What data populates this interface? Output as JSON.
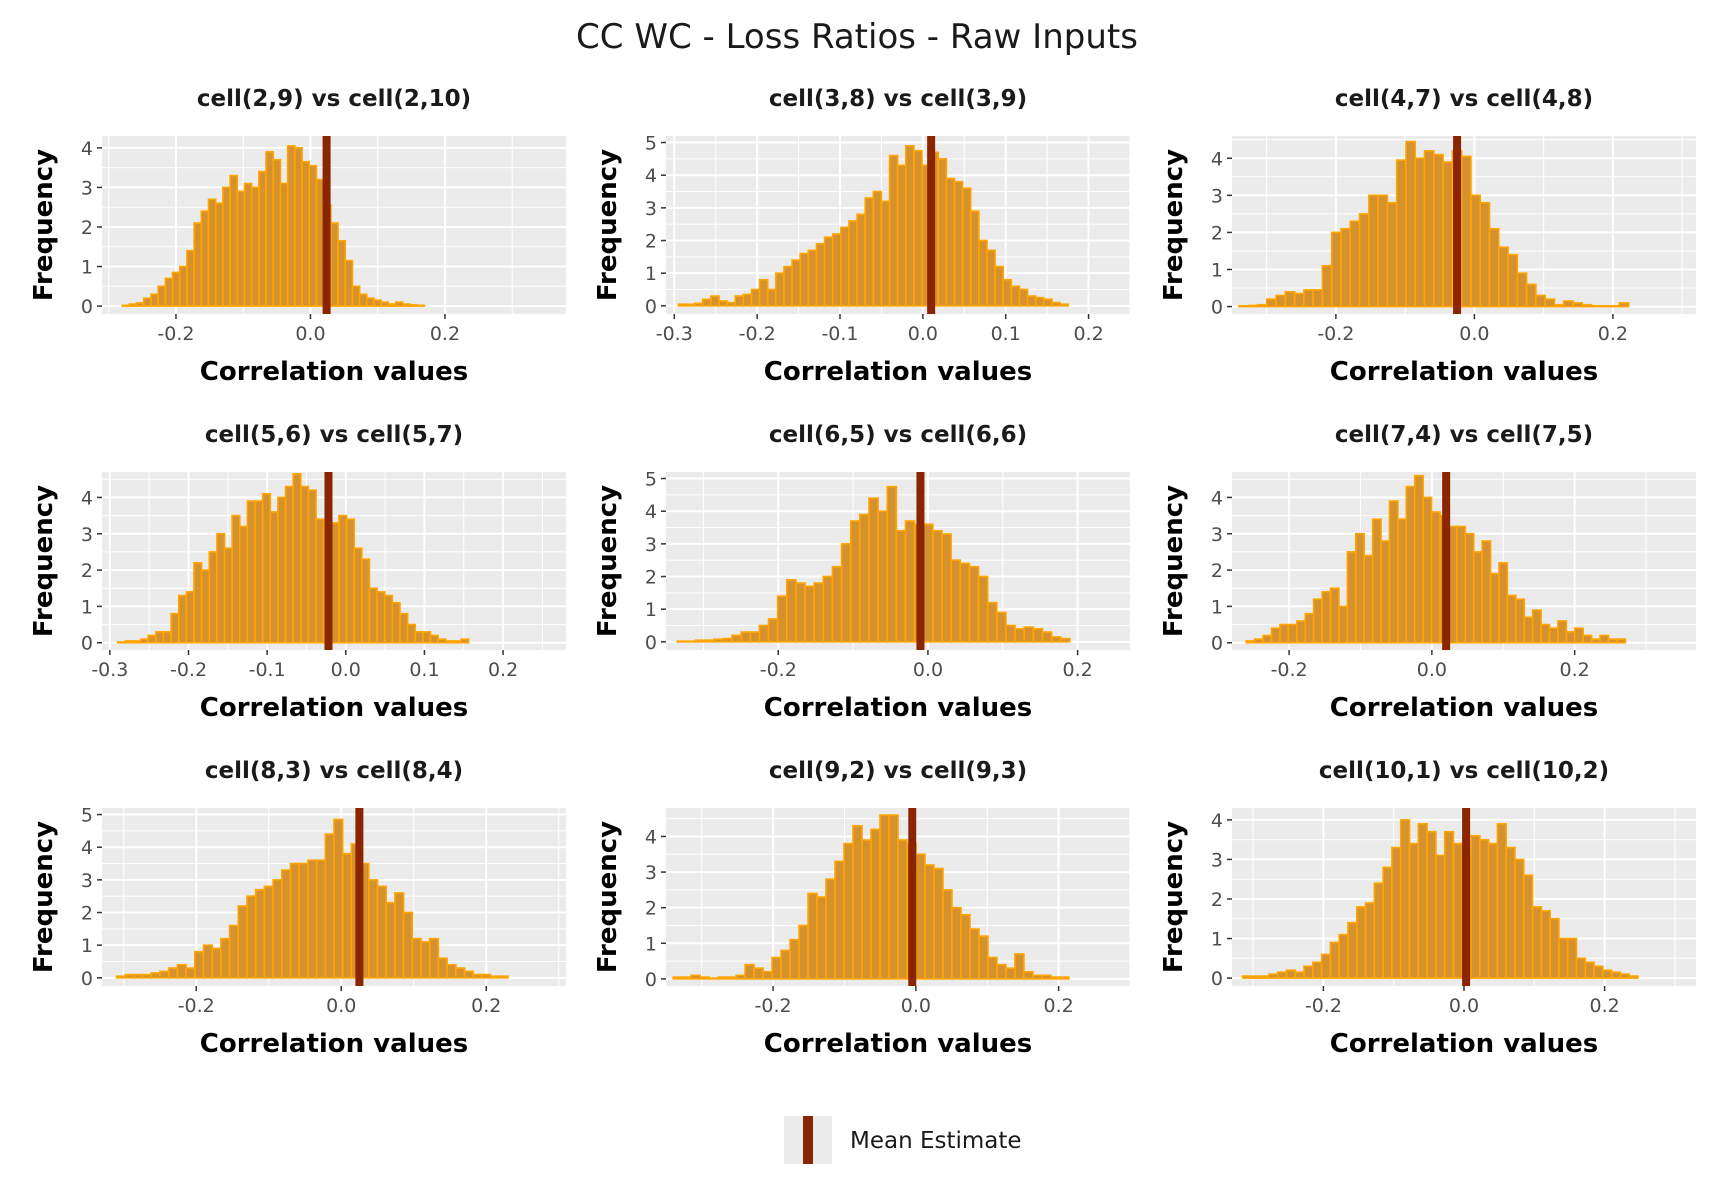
{
  "title": "CC WC - Loss Ratios - Raw Inputs",
  "legend": {
    "label": "Mean Estimate"
  },
  "colors": {
    "panel_bg": "#ebebeb",
    "grid": "#ffffff",
    "bar_fill": "#d4912e",
    "bar_stroke": "#ffa500",
    "mean_line": "#8b2500"
  },
  "chart_data": [
    {
      "type": "bar",
      "title": "cell(2,9) vs cell(2,10)",
      "xlabel": "Correlation values",
      "ylabel": "Frequency",
      "xlim": [
        -0.31,
        0.38
      ],
      "ylim": [
        -0.2,
        4.3
      ],
      "xticks": [
        -0.2,
        0.0,
        0.2
      ],
      "xtick_labels": [
        "-0.2",
        "0.0",
        "0.2"
      ],
      "yticks": [
        0,
        1,
        2,
        3,
        4
      ],
      "ytick_labels": [
        "0",
        "1",
        "2",
        "3",
        "4"
      ],
      "x_start": -0.28,
      "bin_width": 0.0107,
      "mean": 0.024,
      "values": [
        0.02,
        0.05,
        0.08,
        0.2,
        0.3,
        0.5,
        0.7,
        0.85,
        1.0,
        1.4,
        2.1,
        2.4,
        2.7,
        2.6,
        3.0,
        3.3,
        2.9,
        3.1,
        3.0,
        3.4,
        3.9,
        3.7,
        3.1,
        4.05,
        4.0,
        3.65,
        3.55,
        3.2,
        2.55,
        2.1,
        1.65,
        1.15,
        0.5,
        0.3,
        0.2,
        0.15,
        0.1,
        0.05,
        0.1,
        0.05,
        0.03,
        0.02
      ]
    },
    {
      "type": "bar",
      "title": "cell(3,8) vs cell(3,9)",
      "xlabel": "Correlation values",
      "ylabel": "Frequency",
      "xlim": [
        -0.31,
        0.25
      ],
      "ylim": [
        -0.25,
        5.2
      ],
      "xticks": [
        -0.3,
        -0.2,
        -0.1,
        0.0,
        0.1,
        0.2
      ],
      "xtick_labels": [
        "-0.3",
        "-0.2",
        "-0.1",
        "0.0",
        "0.1",
        "0.2"
      ],
      "yticks": [
        0,
        1,
        2,
        3,
        4,
        5
      ],
      "ytick_labels": [
        "0",
        "1",
        "2",
        "3",
        "4",
        "5"
      ],
      "x_start": -0.295,
      "bin_width": 0.0098,
      "mean": 0.01,
      "values": [
        0.05,
        0.05,
        0.08,
        0.2,
        0.3,
        0.15,
        0.1,
        0.3,
        0.35,
        0.5,
        0.8,
        0.5,
        1.0,
        1.2,
        1.4,
        1.6,
        1.7,
        1.9,
        2.1,
        2.2,
        2.4,
        2.6,
        2.8,
        3.3,
        3.5,
        3.2,
        4.6,
        4.3,
        4.9,
        4.75,
        4.3,
        4.7,
        4.5,
        3.9,
        3.8,
        3.6,
        2.9,
        2.0,
        1.7,
        1.2,
        0.8,
        0.6,
        0.5,
        0.3,
        0.25,
        0.2,
        0.1,
        0.05
      ]
    },
    {
      "type": "bar",
      "title": "cell(4,7) vs cell(4,8)",
      "xlabel": "Correlation values",
      "ylabel": "Frequency",
      "xlim": [
        -0.35,
        0.32
      ],
      "ylim": [
        -0.2,
        4.6
      ],
      "xticks": [
        -0.2,
        0.0,
        0.2
      ],
      "xtick_labels": [
        "-0.2",
        "0.0",
        "0.2"
      ],
      "yticks": [
        0,
        1,
        2,
        3,
        4
      ],
      "ytick_labels": [
        "0",
        "1",
        "2",
        "3",
        "4"
      ],
      "x_start": -0.34,
      "bin_width": 0.0134,
      "mean": -0.025,
      "values": [
        0.02,
        0.03,
        0.05,
        0.2,
        0.3,
        0.4,
        0.35,
        0.45,
        0.45,
        1.1,
        2.0,
        2.1,
        2.3,
        2.5,
        3.0,
        3.0,
        2.8,
        3.95,
        4.45,
        4.0,
        4.2,
        4.1,
        3.9,
        4.2,
        4.05,
        3.0,
        2.8,
        2.1,
        1.6,
        1.4,
        0.9,
        0.6,
        0.3,
        0.2,
        0.05,
        0.15,
        0.1,
        0.05,
        0.02,
        0.02,
        0.02,
        0.1
      ]
    },
    {
      "type": "bar",
      "title": "cell(5,6) vs cell(5,7)",
      "xlabel": "Correlation values",
      "ylabel": "Frequency",
      "xlim": [
        -0.31,
        0.28
      ],
      "ylim": [
        -0.2,
        4.7
      ],
      "xticks": [
        -0.3,
        -0.2,
        -0.1,
        0.0,
        0.1,
        0.2
      ],
      "xtick_labels": [
        "-0.3",
        "-0.2",
        "-0.1",
        "0.0",
        "0.1",
        "0.2"
      ],
      "yticks": [
        0,
        1,
        2,
        3,
        4
      ],
      "ytick_labels": [
        "0",
        "1",
        "2",
        "3",
        "4"
      ],
      "x_start": -0.29,
      "bin_width": 0.0097,
      "mean": -0.022,
      "values": [
        0.02,
        0.05,
        0.05,
        0.1,
        0.2,
        0.3,
        0.3,
        0.8,
        1.3,
        1.4,
        2.2,
        2.0,
        2.5,
        3.0,
        2.6,
        3.5,
        3.2,
        3.9,
        3.9,
        4.1,
        3.6,
        4.0,
        4.3,
        4.65,
        4.3,
        4.2,
        3.4,
        3.2,
        3.3,
        3.5,
        3.4,
        2.6,
        2.3,
        1.5,
        1.4,
        1.3,
        1.1,
        0.8,
        0.5,
        0.3,
        0.3,
        0.2,
        0.1,
        0.05,
        0.05,
        0.1
      ]
    },
    {
      "type": "bar",
      "title": "cell(6,5) vs cell(6,6)",
      "xlabel": "Correlation values",
      "ylabel": "Frequency",
      "xlim": [
        -0.35,
        0.27
      ],
      "ylim": [
        -0.25,
        5.2
      ],
      "xticks": [
        -0.2,
        0.0,
        0.2
      ],
      "xtick_labels": [
        "-0.2",
        "0.0",
        "0.2"
      ],
      "yticks": [
        0,
        1,
        2,
        3,
        4,
        5
      ],
      "ytick_labels": [
        "0",
        "1",
        "2",
        "3",
        "4",
        "5"
      ],
      "x_start": -0.335,
      "bin_width": 0.0122,
      "mean": -0.01,
      "values": [
        0.02,
        0.02,
        0.05,
        0.05,
        0.08,
        0.1,
        0.2,
        0.3,
        0.3,
        0.5,
        0.7,
        1.4,
        1.9,
        1.8,
        1.7,
        1.8,
        2.0,
        2.3,
        3.0,
        3.7,
        3.9,
        4.4,
        4.0,
        4.75,
        3.4,
        3.7,
        3.6,
        3.6,
        3.4,
        3.3,
        2.5,
        2.4,
        2.3,
        2.0,
        1.2,
        0.9,
        0.5,
        0.4,
        0.45,
        0.4,
        0.3,
        0.15,
        0.1
      ]
    },
    {
      "type": "bar",
      "title": "cell(7,4) vs cell(7,5)",
      "xlabel": "Correlation values",
      "ylabel": "Frequency",
      "xlim": [
        -0.28,
        0.37
      ],
      "ylim": [
        -0.2,
        4.7
      ],
      "xticks": [
        -0.2,
        0.0,
        0.2
      ],
      "xtick_labels": [
        "-0.2",
        "0.0",
        "0.2"
      ],
      "yticks": [
        0,
        1,
        2,
        3,
        4
      ],
      "ytick_labels": [
        "0",
        "1",
        "2",
        "3",
        "4"
      ],
      "x_start": -0.26,
      "bin_width": 0.0118,
      "mean": 0.02,
      "values": [
        0.05,
        0.1,
        0.2,
        0.4,
        0.5,
        0.5,
        0.6,
        0.8,
        1.2,
        1.4,
        1.5,
        1.0,
        2.5,
        3.0,
        2.4,
        3.4,
        2.8,
        3.9,
        3.4,
        4.3,
        4.6,
        4.0,
        3.6,
        3.5,
        3.2,
        3.2,
        3.0,
        2.5,
        2.8,
        1.9,
        2.2,
        1.3,
        1.2,
        0.7,
        0.9,
        0.5,
        0.4,
        0.6,
        0.3,
        0.4,
        0.2,
        0.1,
        0.2,
        0.1,
        0.1
      ]
    },
    {
      "type": "bar",
      "title": "cell(8,3) vs cell(8,4)",
      "xlabel": "Correlation values",
      "ylabel": "Frequency",
      "xlim": [
        -0.33,
        0.31
      ],
      "ylim": [
        -0.25,
        5.2
      ],
      "xticks": [
        -0.2,
        0.0,
        0.2
      ],
      "xtick_labels": [
        "-0.2",
        "0.0",
        "0.2"
      ],
      "yticks": [
        0,
        1,
        2,
        3,
        4,
        5
      ],
      "ytick_labels": [
        "0",
        "1",
        "2",
        "3",
        "4",
        "5"
      ],
      "x_start": -0.31,
      "bin_width": 0.012,
      "mean": 0.025,
      "values": [
        0.05,
        0.1,
        0.1,
        0.1,
        0.15,
        0.2,
        0.3,
        0.4,
        0.3,
        0.8,
        1.0,
        0.9,
        1.2,
        1.6,
        2.2,
        2.5,
        2.7,
        2.8,
        3.0,
        3.3,
        3.5,
        3.5,
        3.6,
        3.6,
        4.4,
        4.85,
        3.8,
        4.1,
        3.5,
        3.0,
        2.8,
        2.3,
        2.6,
        2.0,
        1.2,
        1.1,
        1.2,
        0.6,
        0.4,
        0.3,
        0.2,
        0.1,
        0.1,
        0.05,
        0.05
      ]
    },
    {
      "type": "bar",
      "title": "cell(9,2) vs cell(9,3)",
      "xlabel": "Correlation values",
      "ylabel": "Frequency",
      "xlim": [
        -0.35,
        0.3
      ],
      "ylim": [
        -0.2,
        4.8
      ],
      "xticks": [
        -0.2,
        0.0,
        0.2
      ],
      "xtick_labels": [
        "-0.2",
        "0.0",
        "0.2"
      ],
      "yticks": [
        0,
        1,
        2,
        3,
        4
      ],
      "ytick_labels": [
        "0",
        "1",
        "2",
        "3",
        "4"
      ],
      "x_start": -0.34,
      "bin_width": 0.0126,
      "mean": -0.005,
      "values": [
        0.05,
        0.05,
        0.1,
        0.05,
        0.02,
        0.05,
        0.05,
        0.1,
        0.4,
        0.3,
        0.2,
        0.6,
        0.8,
        1.1,
        1.5,
        2.4,
        2.3,
        2.8,
        3.3,
        3.8,
        4.3,
        3.9,
        4.2,
        4.6,
        4.6,
        3.9,
        3.8,
        3.5,
        3.2,
        3.1,
        2.5,
        2.0,
        1.8,
        1.4,
        1.2,
        0.6,
        0.4,
        0.3,
        0.7,
        0.2,
        0.1,
        0.1,
        0.05,
        0.05
      ]
    },
    {
      "type": "bar",
      "title": "cell(10,1) vs cell(10,2)",
      "xlabel": "Correlation values",
      "ylabel": "Frequency",
      "xlim": [
        -0.33,
        0.33
      ],
      "ylim": [
        -0.2,
        4.3
      ],
      "xticks": [
        -0.2,
        0.0,
        0.2
      ],
      "xtick_labels": [
        "-0.2",
        "0.0",
        "0.2"
      ],
      "yticks": [
        0,
        1,
        2,
        3,
        4
      ],
      "ytick_labels": [
        "0",
        "1",
        "2",
        "3",
        "4"
      ],
      "x_start": -0.315,
      "bin_width": 0.0125,
      "mean": 0.003,
      "values": [
        0.05,
        0.05,
        0.05,
        0.1,
        0.15,
        0.2,
        0.15,
        0.3,
        0.4,
        0.6,
        0.9,
        1.1,
        1.4,
        1.8,
        1.9,
        2.4,
        2.8,
        3.3,
        4.0,
        3.4,
        3.9,
        3.7,
        3.1,
        3.7,
        3.4,
        3.1,
        3.6,
        3.5,
        3.4,
        3.9,
        3.3,
        3.0,
        2.6,
        1.8,
        1.7,
        1.5,
        1.0,
        1.0,
        0.5,
        0.4,
        0.3,
        0.2,
        0.15,
        0.1,
        0.05
      ]
    }
  ]
}
